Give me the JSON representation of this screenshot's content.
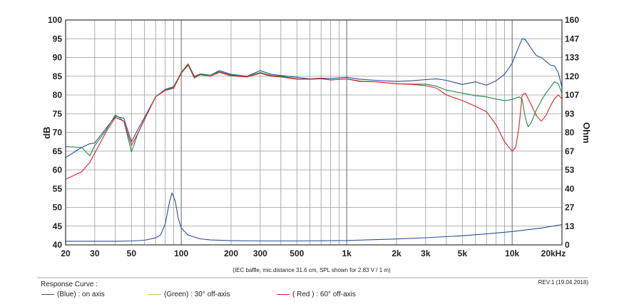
{
  "chart_data": {
    "type": "line",
    "xlabel": "",
    "ylabel": "dB",
    "y2label": "Ohm",
    "xscale": "log",
    "xlim": [
      20,
      20000
    ],
    "ylim": [
      40,
      100
    ],
    "y2lim": [
      0,
      160
    ],
    "x_tick_labels": [
      {
        "v": 20,
        "t": "20"
      },
      {
        "v": 30,
        "t": "30"
      },
      {
        "v": 50,
        "t": "50"
      },
      {
        "v": 100,
        "t": "100"
      },
      {
        "v": 200,
        "t": "200"
      },
      {
        "v": 300,
        "t": "300"
      },
      {
        "v": 500,
        "t": "500"
      },
      {
        "v": 1000,
        "t": "1k"
      },
      {
        "v": 2000,
        "t": "2k"
      },
      {
        "v": 3000,
        "t": "3k"
      },
      {
        "v": 5000,
        "t": "5k"
      },
      {
        "v": 10000,
        "t": "10k"
      },
      {
        "v": 20000,
        "t": "20kHz"
      }
    ],
    "y_tick_labels": [
      "40",
      "45",
      "50",
      "55",
      "60",
      "65",
      "70",
      "75",
      "80",
      "85",
      "90",
      "95",
      "100"
    ],
    "y2_tick_labels": [
      "0",
      "13",
      "27",
      "40",
      "53",
      "67",
      "80",
      "93",
      "107",
      "120",
      "133",
      "147",
      "160"
    ],
    "grid": true,
    "note": "(IEC baffle, mic.distance 31.6 cm, SPL shown for 2.83 V / 1 m)",
    "revision": "REV:1 (19.04.2018)",
    "legend_title": "Response Curve :",
    "legend_placement": "bottom",
    "series": [
      {
        "name": "(Blue)  : on axis",
        "color": "#2a4f9a",
        "axis": "left",
        "points": [
          [
            20,
            63.3
          ],
          [
            25,
            66.0
          ],
          [
            28,
            67.0
          ],
          [
            30,
            67.2
          ],
          [
            35,
            71.0
          ],
          [
            40,
            74.3
          ],
          [
            45,
            73.8
          ],
          [
            50,
            67.5
          ],
          [
            55,
            71.0
          ],
          [
            60,
            74.0
          ],
          [
            70,
            79.5
          ],
          [
            80,
            81.5
          ],
          [
            90,
            82.2
          ],
          [
            100,
            86.0
          ],
          [
            110,
            88.3
          ],
          [
            120,
            85.0
          ],
          [
            130,
            85.6
          ],
          [
            150,
            85.3
          ],
          [
            170,
            86.5
          ],
          [
            200,
            85.5
          ],
          [
            250,
            85.0
          ],
          [
            300,
            86.5
          ],
          [
            350,
            85.5
          ],
          [
            400,
            85.2
          ],
          [
            500,
            84.7
          ],
          [
            600,
            84.3
          ],
          [
            700,
            84.5
          ],
          [
            800,
            84.4
          ],
          [
            1000,
            84.7
          ],
          [
            1200,
            84.2
          ],
          [
            1500,
            83.9
          ],
          [
            2000,
            83.6
          ],
          [
            2500,
            83.8
          ],
          [
            3000,
            84.1
          ],
          [
            3500,
            84.3
          ],
          [
            4000,
            83.9
          ],
          [
            5000,
            82.8
          ],
          [
            6000,
            83.5
          ],
          [
            7000,
            82.6
          ],
          [
            8000,
            83.8
          ],
          [
            9000,
            85.5
          ],
          [
            10000,
            88.5
          ],
          [
            11000,
            93.0
          ],
          [
            11500,
            95.0
          ],
          [
            12000,
            94.8
          ],
          [
            13000,
            92.5
          ],
          [
            14000,
            90.5
          ],
          [
            15000,
            90.0
          ],
          [
            16000,
            89.0
          ],
          [
            17000,
            88.0
          ],
          [
            18000,
            87.8
          ],
          [
            19000,
            86.0
          ],
          [
            20000,
            82.0
          ]
        ]
      },
      {
        "name": "(Green) : 30° off-axis",
        "color": "#1e8a4a",
        "axis": "left",
        "points": [
          [
            20,
            66.2
          ],
          [
            25,
            66.0
          ],
          [
            28,
            63.8
          ],
          [
            30,
            66.5
          ],
          [
            35,
            70.5
          ],
          [
            40,
            74.7
          ],
          [
            45,
            73.0
          ],
          [
            50,
            64.8
          ],
          [
            55,
            70.0
          ],
          [
            60,
            73.5
          ],
          [
            70,
            79.5
          ],
          [
            80,
            81.4
          ],
          [
            90,
            82.0
          ],
          [
            100,
            86.0
          ],
          [
            110,
            88.3
          ],
          [
            120,
            84.8
          ],
          [
            130,
            85.6
          ],
          [
            150,
            85.3
          ],
          [
            170,
            86.2
          ],
          [
            200,
            85.3
          ],
          [
            250,
            85.0
          ],
          [
            300,
            86.0
          ],
          [
            350,
            85.2
          ],
          [
            400,
            85.0
          ],
          [
            500,
            84.3
          ],
          [
            600,
            84.2
          ],
          [
            700,
            84.3
          ],
          [
            800,
            84.0
          ],
          [
            1000,
            84.3
          ],
          [
            1200,
            83.7
          ],
          [
            1500,
            83.5
          ],
          [
            2000,
            83.0
          ],
          [
            2500,
            82.9
          ],
          [
            3000,
            82.9
          ],
          [
            3500,
            82.3
          ],
          [
            4000,
            81.3
          ],
          [
            5000,
            80.5
          ],
          [
            6000,
            79.8
          ],
          [
            7000,
            79.5
          ],
          [
            8000,
            78.9
          ],
          [
            9000,
            78.5
          ],
          [
            10000,
            78.8
          ],
          [
            11000,
            79.5
          ],
          [
            11500,
            78.8
          ],
          [
            12000,
            74.0
          ],
          [
            12500,
            71.5
          ],
          [
            13000,
            72.5
          ],
          [
            14000,
            76.0
          ],
          [
            15000,
            78.5
          ],
          [
            16000,
            80.5
          ],
          [
            17000,
            82.0
          ],
          [
            18000,
            83.5
          ],
          [
            19000,
            83.0
          ],
          [
            20000,
            80.5
          ]
        ]
      },
      {
        "name": "( Red ) : 60° off-axis",
        "color": "#e02222",
        "axis": "left",
        "points": [
          [
            20,
            57.5
          ],
          [
            25,
            59.5
          ],
          [
            28,
            62.0
          ],
          [
            30,
            64.5
          ],
          [
            35,
            70.0
          ],
          [
            40,
            74.0
          ],
          [
            45,
            73.0
          ],
          [
            50,
            66.5
          ],
          [
            55,
            70.0
          ],
          [
            60,
            73.5
          ],
          [
            70,
            79.5
          ],
          [
            80,
            81.2
          ],
          [
            90,
            81.8
          ],
          [
            100,
            85.8
          ],
          [
            110,
            88.0
          ],
          [
            120,
            84.5
          ],
          [
            130,
            85.4
          ],
          [
            150,
            85.0
          ],
          [
            170,
            86.0
          ],
          [
            200,
            85.1
          ],
          [
            250,
            84.8
          ],
          [
            300,
            85.8
          ],
          [
            350,
            85.0
          ],
          [
            400,
            84.8
          ],
          [
            500,
            84.2
          ],
          [
            600,
            84.2
          ],
          [
            700,
            84.4
          ],
          [
            800,
            84.0
          ],
          [
            1000,
            84.3
          ],
          [
            1200,
            83.6
          ],
          [
            1500,
            83.5
          ],
          [
            2000,
            83.0
          ],
          [
            2500,
            82.8
          ],
          [
            3000,
            82.5
          ],
          [
            3500,
            81.8
          ],
          [
            4000,
            80.0
          ],
          [
            5000,
            78.5
          ],
          [
            6000,
            77.0
          ],
          [
            7000,
            75.5
          ],
          [
            8000,
            72.0
          ],
          [
            9000,
            67.5
          ],
          [
            10000,
            65.0
          ],
          [
            10500,
            66.0
          ],
          [
            11000,
            71.5
          ],
          [
            11500,
            80.0
          ],
          [
            12000,
            80.5
          ],
          [
            13000,
            77.5
          ],
          [
            14000,
            74.5
          ],
          [
            15000,
            73.0
          ],
          [
            16000,
            74.5
          ],
          [
            17000,
            77.0
          ],
          [
            18000,
            79.0
          ],
          [
            19000,
            80.0
          ],
          [
            20000,
            79.0
          ]
        ]
      },
      {
        "name": "",
        "color": "#2a4f9a",
        "axis": "right",
        "points": [
          [
            20,
            2.6
          ],
          [
            40,
            2.6
          ],
          [
            50,
            2.8
          ],
          [
            60,
            3.3
          ],
          [
            70,
            5.0
          ],
          [
            75,
            7.0
          ],
          [
            80,
            15.0
          ],
          [
            85,
            31.0
          ],
          [
            88,
            37.0
          ],
          [
            92,
            31.0
          ],
          [
            96,
            19.0
          ],
          [
            100,
            12.0
          ],
          [
            110,
            7.0
          ],
          [
            130,
            4.3
          ],
          [
            150,
            3.5
          ],
          [
            200,
            3.0
          ],
          [
            300,
            2.8
          ],
          [
            500,
            2.8
          ],
          [
            1000,
            3.1
          ],
          [
            2000,
            4.2
          ],
          [
            3000,
            5.1
          ],
          [
            5000,
            6.5
          ],
          [
            7000,
            7.8
          ],
          [
            10000,
            9.5
          ],
          [
            15000,
            12.0
          ],
          [
            20000,
            14.5
          ]
        ]
      }
    ]
  }
}
